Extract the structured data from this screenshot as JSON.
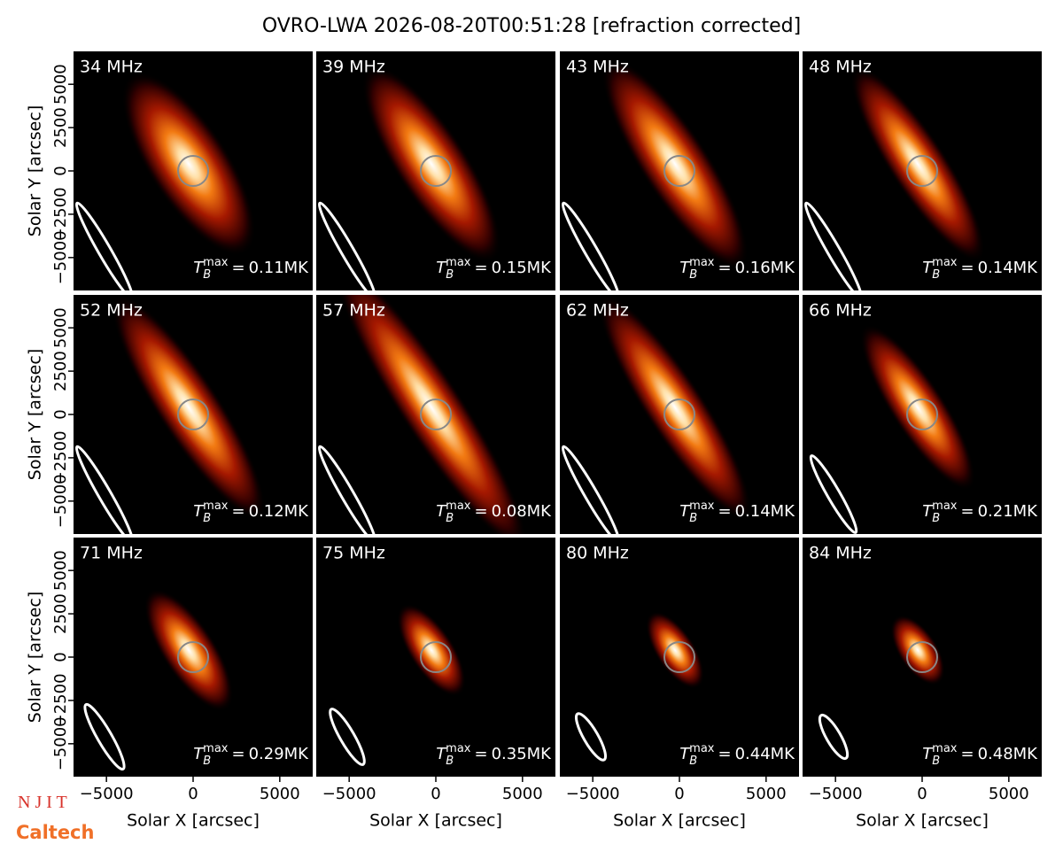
{
  "chart_data": {
    "type": "image-grid",
    "title": "OVRO-LWA 2026-08-20T00:51:28 [refraction corrected]",
    "xlabel": "Solar X [arcsec]",
    "ylabel": "Solar Y [arcsec]",
    "categories": [
      "34 MHz",
      "39 MHz",
      "43 MHz",
      "48 MHz",
      "52 MHz",
      "57 MHz",
      "62 MHz",
      "66 MHz",
      "71 MHz",
      "75 MHz",
      "80 MHz",
      "84 MHz"
    ],
    "values": [
      0.11,
      0.15,
      0.16,
      0.14,
      0.12,
      0.08,
      0.14,
      0.21,
      0.29,
      0.35,
      0.44,
      0.48
    ],
    "value_labels": [
      "0.11MK",
      "0.15MK",
      "0.16MK",
      "0.14MK",
      "0.12MK",
      "0.08MK",
      "0.14MK",
      "0.21MK",
      "0.29MK",
      "0.35MK",
      "0.44MK",
      "0.48MK"
    ],
    "tb_symbol": "T",
    "tb_sub": "B",
    "tb_sup": "max",
    "tb_eq": "=",
    "xlim": [
      -6900,
      6900
    ],
    "ylim": [
      -6900,
      6900
    ],
    "xticks": [
      {
        "value": -5000,
        "label": "−5000"
      },
      0,
      5000
    ],
    "yticks": [
      {
        "value": -5000,
        "label": "−5000"
      },
      {
        "value": -2500,
        "label": "−2500"
      },
      0,
      2500,
      5000
    ],
    "logos": [
      "N J I T",
      "Caltech"
    ]
  }
}
